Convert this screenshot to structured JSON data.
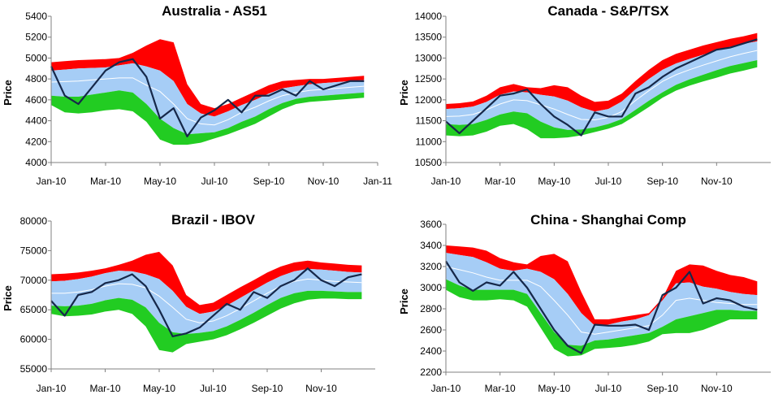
{
  "colors": {
    "upper_band": "#ff0000",
    "inner_band": "#a6cdf6",
    "lower_band": "#22cc22",
    "price_line": "#16284a",
    "mid_line": "#ffffff",
    "axis": "#808080"
  },
  "chart_data": [
    {
      "type": "area",
      "title": "Australia - AS51",
      "ylabel": "Price",
      "ylim": [
        4000,
        5400
      ],
      "yticks": [
        "4000",
        "4200",
        "4400",
        "4600",
        "4800",
        "5000",
        "5200",
        "5400"
      ],
      "xlim": [
        0,
        12
      ],
      "xtick_labels": [
        "Jan-10",
        "Mar-10",
        "May-10",
        "Jul-10",
        "Sep-10",
        "Nov-10",
        "Jan-11"
      ],
      "x": [
        0,
        0.5,
        1,
        1.5,
        2,
        2.5,
        3,
        3.5,
        4,
        4.5,
        5,
        5.5,
        6,
        6.5,
        7,
        7.5,
        8,
        8.5,
        9,
        9.5,
        10,
        10.5,
        11,
        11.5
      ],
      "series": [
        {
          "role": "upper",
          "values": [
            4960,
            4970,
            4980,
            4985,
            4990,
            5000,
            5050,
            5120,
            5180,
            5150,
            4750,
            4560,
            4520,
            4560,
            4620,
            4680,
            4740,
            4780,
            4790,
            4800,
            4800,
            4810,
            4820,
            4830
          ]
        },
        {
          "role": "upper_mid",
          "values": [
            4880,
            4890,
            4900,
            4905,
            4910,
            4930,
            4950,
            4920,
            4880,
            4780,
            4560,
            4470,
            4440,
            4490,
            4550,
            4600,
            4660,
            4710,
            4730,
            4750,
            4760,
            4770,
            4780,
            4790
          ]
        },
        {
          "role": "mid",
          "values": [
            4770,
            4775,
            4780,
            4790,
            4800,
            4810,
            4810,
            4740,
            4680,
            4560,
            4420,
            4370,
            4360,
            4410,
            4480,
            4530,
            4590,
            4640,
            4670,
            4690,
            4700,
            4710,
            4720,
            4730
          ]
        },
        {
          "role": "lower_mid",
          "values": [
            4640,
            4630,
            4630,
            4650,
            4670,
            4690,
            4670,
            4560,
            4420,
            4330,
            4270,
            4280,
            4290,
            4330,
            4390,
            4440,
            4510,
            4570,
            4610,
            4630,
            4640,
            4650,
            4660,
            4670
          ]
        },
        {
          "role": "lower",
          "values": [
            4550,
            4480,
            4470,
            4480,
            4500,
            4510,
            4490,
            4390,
            4220,
            4170,
            4170,
            4190,
            4230,
            4270,
            4320,
            4370,
            4440,
            4510,
            4560,
            4580,
            4590,
            4600,
            4610,
            4620
          ]
        },
        {
          "role": "price",
          "values": [
            4920,
            4640,
            4560,
            4720,
            4880,
            4960,
            4990,
            4820,
            4420,
            4520,
            4250,
            4430,
            4500,
            4600,
            4480,
            4640,
            4640,
            4700,
            4640,
            4780,
            4700,
            4740,
            4780,
            4780
          ]
        }
      ]
    },
    {
      "type": "area",
      "title": "Canada - S&P/TSX",
      "ylabel": "Price",
      "ylim": [
        10500,
        14000
      ],
      "yticks": [
        "10500",
        "11000",
        "11500",
        "12000",
        "12500",
        "13000",
        "13500",
        "14000"
      ],
      "xlim": [
        0,
        12
      ],
      "xtick_labels": [
        "Jan-10",
        "Mar-10",
        "May-10",
        "Jul-10",
        "Sep-10",
        "Nov-10"
      ],
      "x": [
        0,
        0.5,
        1,
        1.5,
        2,
        2.5,
        3,
        3.5,
        4,
        4.5,
        5,
        5.5,
        6,
        6.5,
        7,
        7.5,
        8,
        8.5,
        9,
        9.5,
        10,
        10.5,
        11,
        11.5
      ],
      "series": [
        {
          "role": "upper",
          "values": [
            11900,
            11920,
            11960,
            12100,
            12300,
            12380,
            12300,
            12280,
            12350,
            12300,
            12100,
            11950,
            11980,
            12150,
            12450,
            12720,
            12950,
            13100,
            13200,
            13300,
            13380,
            13460,
            13520,
            13600
          ]
        },
        {
          "role": "upper_mid",
          "values": [
            11780,
            11800,
            11840,
            11950,
            12120,
            12200,
            12180,
            12120,
            12080,
            11980,
            11820,
            11720,
            11780,
            11960,
            12250,
            12500,
            12720,
            12870,
            12980,
            13080,
            13180,
            13270,
            13340,
            13400
          ]
        },
        {
          "role": "mid",
          "values": [
            11600,
            11610,
            11650,
            11760,
            11900,
            12000,
            11980,
            11880,
            11780,
            11650,
            11530,
            11520,
            11580,
            11720,
            11980,
            12220,
            12440,
            12600,
            12720,
            12830,
            12930,
            13030,
            13110,
            13180
          ]
        },
        {
          "role": "lower_mid",
          "values": [
            11420,
            11400,
            11420,
            11520,
            11650,
            11720,
            11680,
            11480,
            11340,
            11280,
            11290,
            11340,
            11420,
            11540,
            11760,
            11980,
            12180,
            12360,
            12490,
            12600,
            12710,
            12810,
            12880,
            12950
          ]
        },
        {
          "role": "lower",
          "values": [
            11150,
            11130,
            11150,
            11240,
            11380,
            11420,
            11300,
            11080,
            11080,
            11100,
            11150,
            11230,
            11310,
            11420,
            11620,
            11830,
            12050,
            12220,
            12340,
            12440,
            12530,
            12630,
            12700,
            12780
          ]
        },
        {
          "role": "price",
          "values": [
            11480,
            11200,
            11500,
            11800,
            12100,
            12150,
            12250,
            11900,
            11600,
            11400,
            11150,
            11700,
            11600,
            11600,
            12150,
            12300,
            12550,
            12750,
            12900,
            13050,
            13200,
            13250,
            13350,
            13450
          ]
        }
      ]
    },
    {
      "type": "area",
      "title": "Brazil - IBOV",
      "ylabel": "Price",
      "ylim": [
        55000,
        80000
      ],
      "yticks": [
        "55000",
        "60000",
        "65000",
        "70000",
        "75000",
        "80000"
      ],
      "xlim": [
        0,
        12
      ],
      "xtick_labels": [
        "Jan-10",
        "Mar-10",
        "May-10",
        "Jul-10",
        "Sep-10",
        "Nov-10"
      ],
      "x": [
        0,
        0.5,
        1,
        1.5,
        2,
        2.5,
        3,
        3.5,
        4,
        4.5,
        5,
        5.5,
        6,
        6.5,
        7,
        7.5,
        8,
        8.5,
        9,
        9.5,
        10,
        10.5,
        11,
        11.5
      ],
      "series": [
        {
          "role": "upper",
          "values": [
            71000,
            71100,
            71300,
            71600,
            72000,
            72600,
            73300,
            74300,
            74800,
            72500,
            67500,
            65800,
            66200,
            67500,
            68800,
            70000,
            71300,
            72300,
            73000,
            73300,
            73000,
            72800,
            72600,
            72500
          ]
        },
        {
          "role": "upper_mid",
          "values": [
            69800,
            69900,
            70200,
            70600,
            71200,
            71600,
            71500,
            71000,
            70200,
            68200,
            65500,
            64300,
            64700,
            65700,
            67000,
            68300,
            69600,
            70700,
            71500,
            71900,
            71800,
            71600,
            71400,
            71300
          ]
        },
        {
          "role": "mid",
          "values": [
            67800,
            67800,
            68000,
            68400,
            69000,
            69400,
            69300,
            68700,
            67300,
            65400,
            63400,
            62800,
            63100,
            64000,
            65200,
            66500,
            67800,
            69000,
            69800,
            70200,
            70000,
            69800,
            69700,
            69600
          ]
        },
        {
          "role": "lower_mid",
          "values": [
            65700,
            65600,
            65700,
            66000,
            66600,
            67000,
            66700,
            65400,
            62800,
            61200,
            60900,
            61100,
            61400,
            62200,
            63300,
            64500,
            65800,
            67000,
            67800,
            68200,
            68200,
            68100,
            68000,
            68000
          ]
        },
        {
          "role": "lower",
          "values": [
            64300,
            63900,
            64000,
            64200,
            64700,
            65000,
            64300,
            62200,
            58200,
            57800,
            59200,
            59600,
            60000,
            60700,
            61700,
            62800,
            64000,
            65200,
            66100,
            66700,
            66900,
            66900,
            66800,
            66800
          ]
        },
        {
          "role": "price",
          "values": [
            66500,
            64000,
            67500,
            68000,
            69500,
            70000,
            71000,
            69000,
            65000,
            60500,
            61000,
            62000,
            64000,
            66000,
            65000,
            68000,
            67000,
            69000,
            70000,
            72000,
            70000,
            69000,
            70500,
            71000
          ]
        }
      ]
    },
    {
      "type": "area",
      "title": "China - Shanghai Comp",
      "ylabel": "Price",
      "ylim": [
        2200,
        3600
      ],
      "yticks": [
        "2200",
        "2400",
        "2600",
        "2800",
        "3000",
        "3200",
        "3400",
        "3600"
      ],
      "xlim": [
        0,
        12
      ],
      "xtick_labels": [
        "Jan-10",
        "Mar-10",
        "May-10",
        "Jul-10",
        "Sep-10",
        "Nov-10"
      ],
      "x": [
        0,
        0.5,
        1,
        1.5,
        2,
        2.5,
        3,
        3.5,
        4,
        4.5,
        5,
        5.5,
        6,
        6.5,
        7,
        7.5,
        8,
        8.5,
        9,
        9.5,
        10,
        10.5,
        11,
        11.5
      ],
      "series": [
        {
          "role": "upper",
          "values": [
            3400,
            3390,
            3380,
            3350,
            3280,
            3240,
            3220,
            3300,
            3320,
            3250,
            2960,
            2700,
            2700,
            2720,
            2740,
            2760,
            2900,
            3160,
            3220,
            3210,
            3160,
            3120,
            3100,
            3060
          ]
        },
        {
          "role": "upper_mid",
          "values": [
            3330,
            3310,
            3290,
            3240,
            3180,
            3160,
            3180,
            3150,
            3080,
            2940,
            2760,
            2640,
            2650,
            2680,
            2700,
            2740,
            2880,
            3040,
            3050,
            3010,
            2990,
            2960,
            2940,
            2930
          ]
        },
        {
          "role": "mid",
          "values": [
            3200,
            3170,
            3140,
            3100,
            3070,
            3070,
            3070,
            3010,
            2880,
            2740,
            2580,
            2560,
            2580,
            2600,
            2620,
            2640,
            2740,
            2880,
            2900,
            2880,
            2860,
            2850,
            2840,
            2840
          ]
        },
        {
          "role": "lower_mid",
          "values": [
            3080,
            3020,
            2980,
            2980,
            2980,
            2980,
            2940,
            2760,
            2580,
            2460,
            2450,
            2500,
            2510,
            2530,
            2550,
            2570,
            2630,
            2700,
            2730,
            2760,
            2790,
            2790,
            2780,
            2780
          ]
        },
        {
          "role": "lower",
          "values": [
            2980,
            2910,
            2880,
            2880,
            2890,
            2880,
            2820,
            2620,
            2420,
            2350,
            2360,
            2420,
            2430,
            2440,
            2460,
            2490,
            2560,
            2570,
            2570,
            2600,
            2650,
            2700,
            2700,
            2700
          ]
        },
        {
          "role": "price",
          "values": [
            3250,
            3050,
            2970,
            3050,
            3020,
            3150,
            3000,
            2800,
            2600,
            2450,
            2380,
            2650,
            2640,
            2640,
            2650,
            2600,
            2930,
            3000,
            3150,
            2850,
            2900,
            2880,
            2820,
            2790
          ]
        }
      ]
    }
  ]
}
